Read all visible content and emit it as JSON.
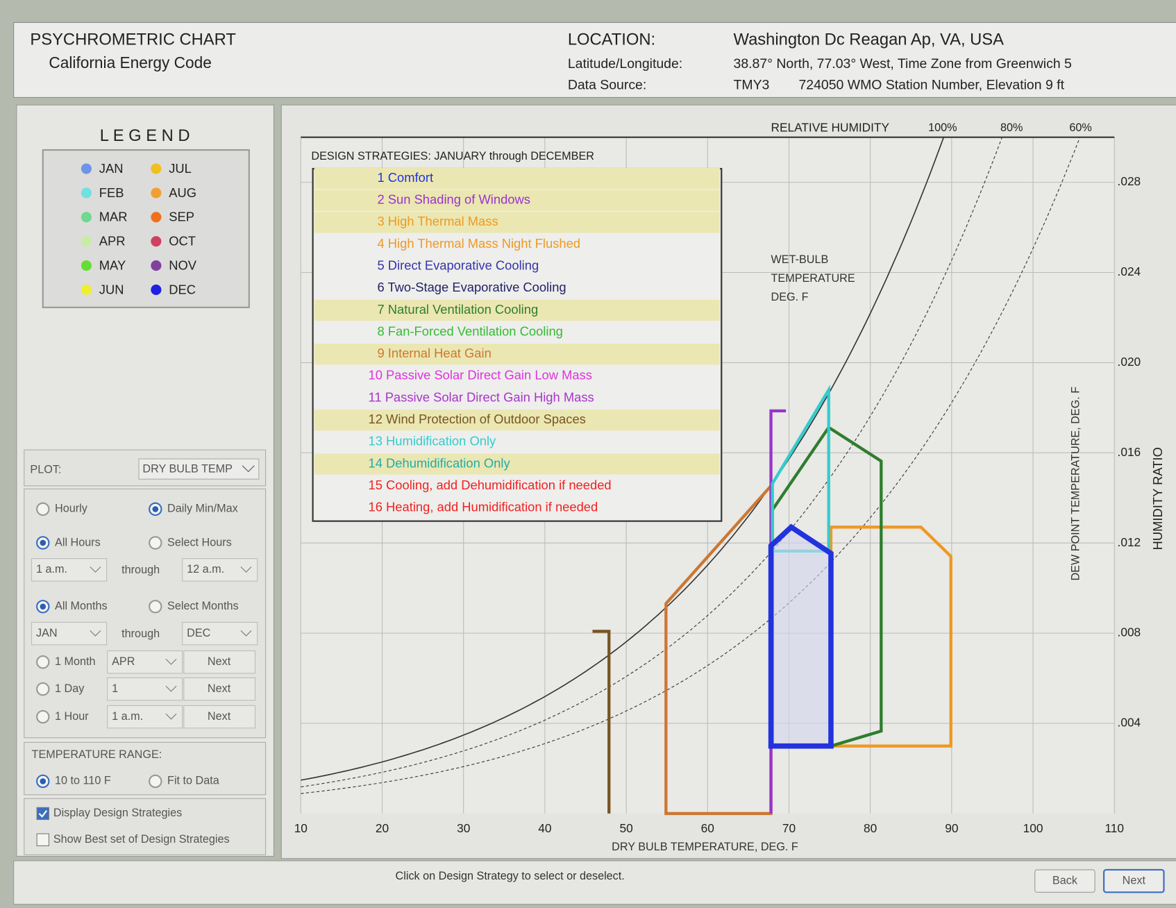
{
  "header": {
    "title": "PSYCHROMETRIC CHART",
    "subtitle": "California Energy Code",
    "location_label": "LOCATION:",
    "location": "Washington Dc Reagan Ap, VA, USA",
    "latlon_label": "Latitude/Longitude:",
    "latlon": "38.87° North, 77.03° West, Time Zone from Greenwich 5",
    "source_label": "Data Source:",
    "source": "TMY3",
    "station": "724050 WMO Station Number, Elevation 9 ft"
  },
  "legend": {
    "title": "L E G E N D",
    "months": [
      {
        "name": "JAN",
        "color": "#6f93e8"
      },
      {
        "name": "FEB",
        "color": "#70e0e0"
      },
      {
        "name": "MAR",
        "color": "#70d890"
      },
      {
        "name": "APR",
        "color": "#c8eca4"
      },
      {
        "name": "MAY",
        "color": "#66dd33"
      },
      {
        "name": "JUN",
        "color": "#eeee33"
      },
      {
        "name": "JUL",
        "color": "#f0c020"
      },
      {
        "name": "AUG",
        "color": "#f0a030"
      },
      {
        "name": "SEP",
        "color": "#f07020"
      },
      {
        "name": "OCT",
        "color": "#d04060"
      },
      {
        "name": "NOV",
        "color": "#8040a0"
      },
      {
        "name": "DEC",
        "color": "#2020e0"
      }
    ]
  },
  "controls": {
    "plot_label": "PLOT:",
    "plot_value": "DRY BULB TEMP",
    "hourly": {
      "label": "Hourly",
      "checked": false
    },
    "daily": {
      "label": "Daily Min/Max",
      "checked": true
    },
    "all_hours": {
      "label": "All Hours",
      "checked": true
    },
    "select_hours": {
      "label": "Select Hours",
      "checked": false
    },
    "hour_from": "1 a.m.",
    "hours_through": "through",
    "hour_to": "12 a.m.",
    "all_months": {
      "label": "All Months",
      "checked": true
    },
    "select_months": {
      "label": "Select Months",
      "checked": false
    },
    "month_from": "JAN",
    "months_through": "through",
    "month_to": "DEC",
    "one_month": {
      "label": "1 Month",
      "checked": false
    },
    "month_value": "APR",
    "month_next": "Next",
    "one_day": {
      "label": "1 Day",
      "checked": false
    },
    "day_value": "1",
    "day_next": "Next",
    "one_hour": {
      "label": "1 Hour",
      "checked": false
    },
    "hour_value": "1 a.m.",
    "hour_next": "Next",
    "temp_range_label": "TEMPERATURE RANGE:",
    "range_fixed": {
      "label": "10 to 110 F",
      "checked": true
    },
    "range_fit": {
      "label": "Fit to Data",
      "checked": false
    },
    "display_strategies": {
      "label": "Display Design Strategies",
      "checked": true
    },
    "show_best": {
      "label": "Show Best set of Design Strategies",
      "checked": false
    }
  },
  "psychro": {
    "rh_label": "RELATIVE HUMIDITY",
    "rh_ticks": [
      {
        "value": 100,
        "label": "100%"
      },
      {
        "value": 80,
        "label": "80%"
      },
      {
        "value": 60,
        "label": "60%"
      }
    ],
    "wet_bulb_label": [
      "WET-BULB",
      "TEMPERATURE",
      "DEG. F"
    ],
    "dew_point_label": "DEW POINT TEMPERATURE, DEG. F",
    "strategies_title": "DESIGN STRATEGIES: JANUARY through DECEMBER",
    "strategies": [
      {
        "label": "1 Comfort",
        "color": "#2233dd",
        "selected": true
      },
      {
        "label": "2 Sun Shading of Windows",
        "color": "#9933cc",
        "selected": true
      },
      {
        "label": "3 High Thermal Mass",
        "color": "#ee9922",
        "selected": true
      },
      {
        "label": "4 High Thermal Mass Night Flushed",
        "color": "#ee9922",
        "selected": false
      },
      {
        "label": "5 Direct Evaporative Cooling",
        "color": "#3333aa",
        "selected": false
      },
      {
        "label": "6 Two-Stage Evaporative Cooling",
        "color": "#222266",
        "selected": false
      },
      {
        "label": "7 Natural Ventilation Cooling",
        "color": "#2e7d2e",
        "selected": true
      },
      {
        "label": "8 Fan-Forced Ventilation Cooling",
        "color": "#33bb33",
        "selected": false
      },
      {
        "label": "9 Internal Heat Gain",
        "color": "#cc7733",
        "selected": true
      },
      {
        "label": "10 Passive Solar Direct Gain Low Mass",
        "color": "#dd33dd",
        "selected": false
      },
      {
        "label": "11 Passive Solar Direct Gain High Mass",
        "color": "#aa33cc",
        "selected": false
      },
      {
        "label": "12 Wind Protection of Outdoor Spaces",
        "color": "#775522",
        "selected": true
      },
      {
        "label": "13 Humidification Only",
        "color": "#33cccc",
        "selected": false
      },
      {
        "label": "14 Dehumidification Only",
        "color": "#22aaaa",
        "selected": true
      },
      {
        "label": "15 Cooling, add Dehumidification if needed",
        "color": "#ee2222",
        "selected": false
      },
      {
        "label": "16 Heating, add Humidification if needed",
        "color": "#ee2222",
        "selected": false
      }
    ],
    "x_label": "DRY BULB TEMPERATURE, DEG. F",
    "xlim": [
      10,
      110
    ],
    "xticks": [
      10,
      20,
      30,
      40,
      50,
      60,
      70,
      80,
      90,
      100,
      110
    ],
    "y_label": "HUMIDITY RATIO",
    "ylim": [
      0,
      0.03
    ],
    "yticks": [
      {
        "value": 0.004,
        "label": ".004"
      },
      {
        "value": 0.008,
        "label": ".008"
      },
      {
        "value": 0.012,
        "label": ".012"
      },
      {
        "value": 0.016,
        "label": ".016"
      },
      {
        "value": 0.02,
        "label": ".020"
      },
      {
        "value": 0.024,
        "label": ".024"
      },
      {
        "value": 0.028,
        "label": ".028"
      }
    ]
  },
  "footer": {
    "hint": "Click on Design Strategy to select or deselect.",
    "back": "Back",
    "next": "Next"
  }
}
